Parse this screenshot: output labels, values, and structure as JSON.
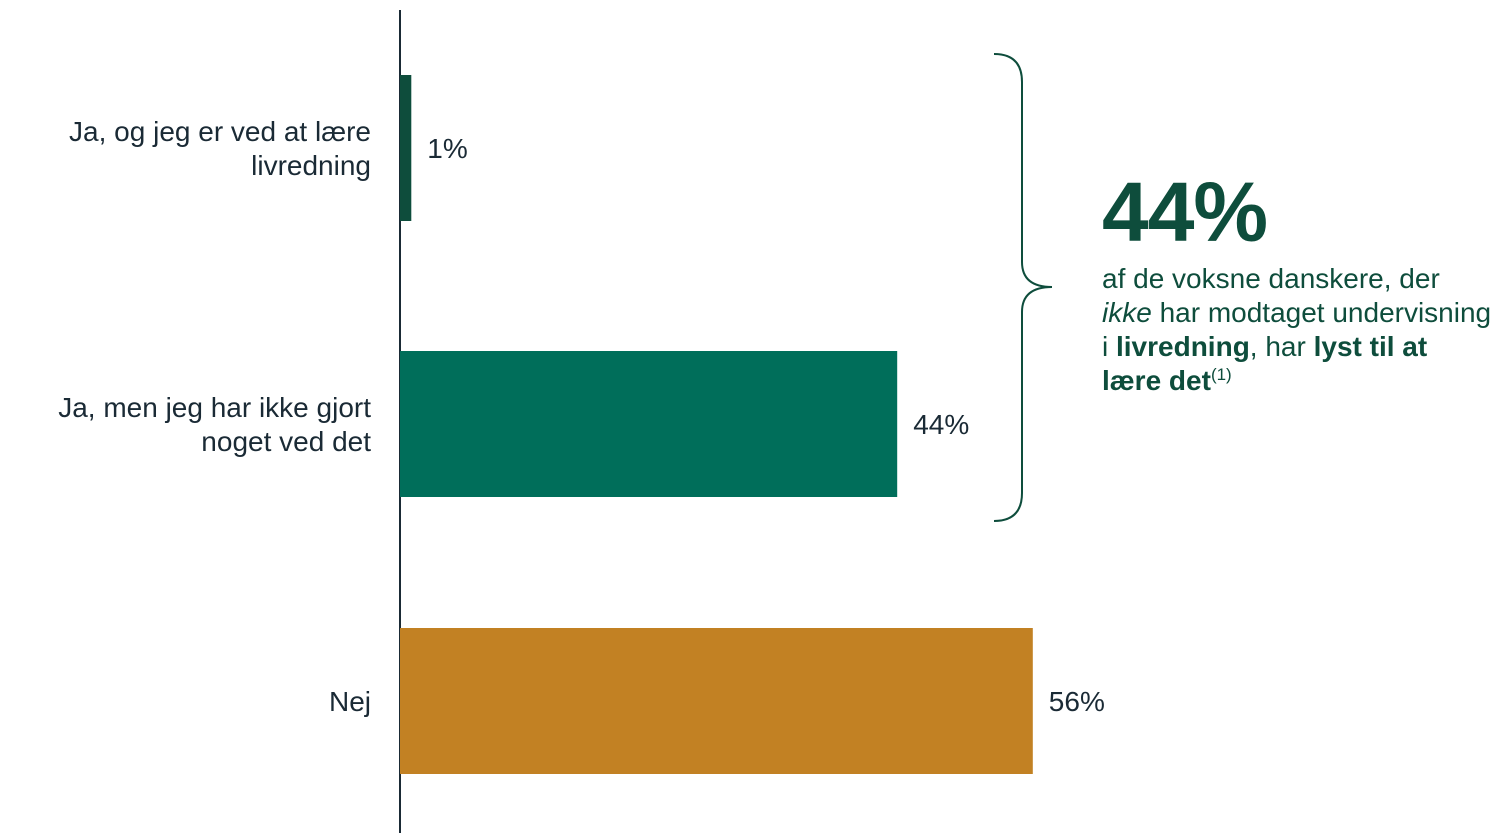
{
  "chart_data": {
    "type": "bar",
    "orientation": "horizontal",
    "categories": [
      [
        "Ja, og jeg er ved at lære",
        "livredning"
      ],
      [
        "Ja, men jeg har ikke gjort",
        "noget ved det"
      ],
      [
        "Nej"
      ]
    ],
    "values": [
      1,
      44,
      56
    ],
    "value_labels": [
      "1%",
      "44%",
      "56%"
    ],
    "colors": [
      "#0e4d3c",
      "#006e5a",
      "#c28123"
    ],
    "xlim": [
      0,
      100
    ],
    "grid": false,
    "legend": "none"
  },
  "callout": {
    "big_value": "44%",
    "t1": "af de voksne danskere, der ",
    "t2": "ikke",
    "t3": " har modtaget undervisning i ",
    "t4": "livredning",
    "t5": ", har ",
    "t6": "lyst til at lære det",
    "t7": "(1)",
    "color": "#0e4d3c"
  }
}
